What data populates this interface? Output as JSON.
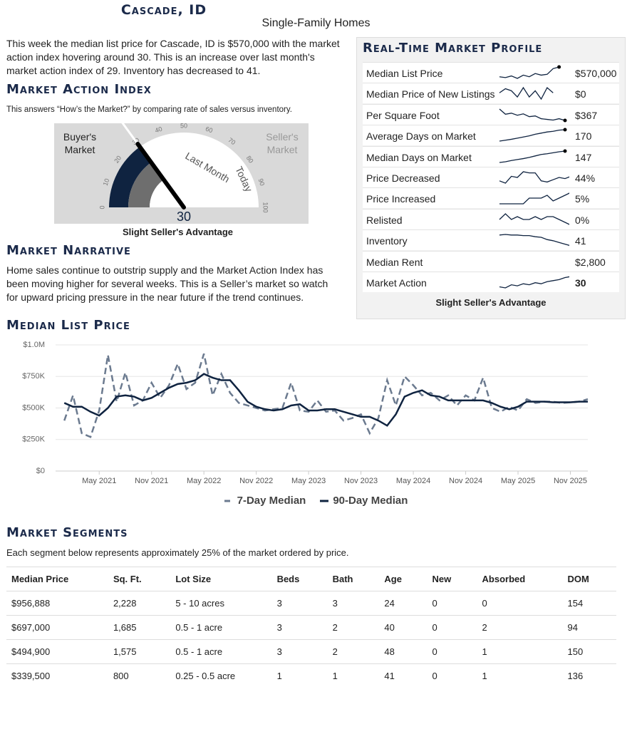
{
  "header": {
    "title": "Cascade, ID",
    "subtitle": "Single-Family Homes",
    "intro": "This week the median list price for Cascade, ID is $570,000 with the market action index hovering around 30. This is an increase over last month's market action index of 29. Inventory has decreased to 41."
  },
  "mai": {
    "title": "Market Action Index",
    "description": "This answers “How’s the Market?” by comparing rate of sales versus inventory.",
    "buyer_label": "Buyer's Market",
    "seller_label": "Seller's Market",
    "ticks": [
      0,
      10,
      20,
      30,
      40,
      50,
      60,
      70,
      80,
      90,
      100
    ],
    "value": 30,
    "last_month": 29,
    "last_month_label": "Last Month",
    "today_label": "Today",
    "caption": "Slight Seller's Advantage"
  },
  "narrative": {
    "title": "Market Narrative",
    "text": "Home sales continue to outstrip supply and the Market Action Index has been moving higher for several weeks. This is a Seller’s market so watch for upward pricing pressure in the near future if the trend continues."
  },
  "profile": {
    "title": "Real-Time Market Profile",
    "footer": "Slight Seller's Advantage",
    "rows": [
      {
        "label": "Median List Price",
        "value": "$570,000",
        "dot": true,
        "spark": [
          540000,
          535000,
          545000,
          530000,
          550000,
          540000,
          560000,
          550000,
          555000,
          590000,
          600000
        ]
      },
      {
        "label": "Median Price of New Listings",
        "value": "$0",
        "dot": false,
        "spark": [
          600000,
          640000,
          620000,
          560000,
          650000,
          560000,
          620000,
          540000,
          650000,
          600000
        ]
      },
      {
        "label": "Per Square Foot",
        "value": "$367",
        "dot": true,
        "spark": [
          400,
          385,
          388,
          382,
          386,
          378,
          380,
          372,
          370,
          368,
          372,
          367
        ]
      },
      {
        "label": "Average Days on Market",
        "value": "170",
        "dot": true,
        "spark": [
          120,
          124,
          128,
          133,
          138,
          143,
          150,
          155,
          160,
          163,
          168,
          170
        ]
      },
      {
        "label": "Median Days on Market",
        "value": "147",
        "dot": true,
        "spark": [
          100,
          103,
          108,
          112,
          116,
          121,
          127,
          133,
          136,
          140,
          144,
          147
        ]
      },
      {
        "label": "Price Decreased",
        "value": "44%",
        "dot": true,
        "spark": [
          40,
          38,
          44,
          43,
          48,
          47,
          47,
          40,
          39,
          41,
          43,
          42,
          44
        ]
      },
      {
        "label": "Price Increased",
        "value": "5%",
        "dot": true,
        "spark": [
          2,
          2,
          2,
          2,
          2,
          4,
          4,
          4,
          5,
          3,
          4,
          5,
          6
        ]
      },
      {
        "label": "Relisted",
        "value": "0%",
        "dot": false,
        "spark": [
          2,
          4,
          2,
          3,
          2,
          2,
          3,
          2,
          3,
          3,
          2,
          1,
          0
        ]
      },
      {
        "label": "Inventory",
        "value": "41",
        "dot": true,
        "spark": [
          60,
          61,
          60,
          60,
          59,
          59,
          57,
          56,
          52,
          50,
          47,
          44,
          41
        ]
      },
      {
        "label": "Median Rent",
        "value": "$2,800",
        "dot": false
      },
      {
        "label": "Market Action",
        "value": "30",
        "dot": true,
        "bold": true,
        "spark": [
          20,
          19,
          22,
          21,
          23,
          22,
          24,
          23,
          25,
          26,
          27,
          29,
          30
        ]
      }
    ]
  },
  "chart_data": {
    "type": "line",
    "title": "Median List Price",
    "legend": "bottom",
    "grid": true,
    "x": [
      "2021-01",
      "2021-02",
      "2021-03",
      "2021-04",
      "2021-05",
      "2021-06",
      "2021-07",
      "2021-08",
      "2021-09",
      "2021-10",
      "2021-11",
      "2021-12",
      "2022-01",
      "2022-02",
      "2022-03",
      "2022-04",
      "2022-05",
      "2022-06",
      "2022-07",
      "2022-08",
      "2022-09",
      "2022-10",
      "2022-11",
      "2022-12",
      "2023-01",
      "2023-02",
      "2023-03",
      "2023-04",
      "2023-05",
      "2023-06",
      "2023-07",
      "2023-08",
      "2023-09",
      "2023-10",
      "2023-11",
      "2023-12",
      "2024-01",
      "2024-02",
      "2024-03",
      "2024-04",
      "2024-05",
      "2024-06",
      "2024-07",
      "2024-08",
      "2024-09",
      "2024-10",
      "2024-11",
      "2024-12",
      "2025-01",
      "2025-02",
      "2025-03",
      "2025-04",
      "2025-05",
      "2025-06",
      "2025-07",
      "2025-08",
      "2025-09",
      "2025-10",
      "2025-11",
      "2025-12",
      "2026-01"
    ],
    "xlim": [
      "2020-12",
      "2026-01"
    ],
    "xticks": [
      {
        "value": "2021-05",
        "label": "May 2021"
      },
      {
        "value": "2021-11",
        "label": "Nov 2021"
      },
      {
        "value": "2022-05",
        "label": "May 2022"
      },
      {
        "value": "2022-11",
        "label": "Nov 2022"
      },
      {
        "value": "2023-05",
        "label": "May 2023"
      },
      {
        "value": "2023-11",
        "label": "Nov 2023"
      },
      {
        "value": "2024-05",
        "label": "May 2024"
      },
      {
        "value": "2024-11",
        "label": "Nov 2024"
      },
      {
        "value": "2025-05",
        "label": "May 2025"
      },
      {
        "value": "2025-11",
        "label": "Nov 2025"
      }
    ],
    "ylim": [
      0,
      1000000
    ],
    "yticks": [
      {
        "value": 0,
        "label": "$0"
      },
      {
        "value": 250000,
        "label": "$250K"
      },
      {
        "value": 500000,
        "label": "$500K"
      },
      {
        "value": 750000,
        "label": "$750K"
      },
      {
        "value": 1000000,
        "label": "$1.0M"
      }
    ],
    "series": [
      {
        "name": "7-Day Median",
        "color": "#6b7a8f",
        "dash": true,
        "values": [
          400000,
          600000,
          300000,
          270000,
          480000,
          920000,
          550000,
          780000,
          520000,
          560000,
          700000,
          580000,
          680000,
          850000,
          650000,
          700000,
          930000,
          600000,
          770000,
          620000,
          540000,
          520000,
          500000,
          480000,
          490000,
          500000,
          700000,
          480000,
          470000,
          560000,
          470000,
          480000,
          400000,
          420000,
          450000,
          300000,
          420000,
          720000,
          520000,
          750000,
          680000,
          600000,
          620000,
          560000,
          600000,
          520000,
          600000,
          560000,
          740000,
          500000,
          470000,
          510000,
          480000,
          570000,
          540000,
          550000,
          550000,
          540000,
          545000,
          550000,
          570000
        ]
      },
      {
        "name": "90-Day Median",
        "color": "#0f2340",
        "dash": false,
        "values": [
          540000,
          510000,
          510000,
          470000,
          440000,
          500000,
          590000,
          600000,
          590000,
          560000,
          580000,
          620000,
          660000,
          690000,
          700000,
          720000,
          770000,
          740000,
          720000,
          720000,
          640000,
          550000,
          510000,
          490000,
          480000,
          490000,
          520000,
          530000,
          480000,
          480000,
          490000,
          490000,
          470000,
          450000,
          430000,
          430000,
          400000,
          360000,
          450000,
          590000,
          620000,
          640000,
          600000,
          590000,
          560000,
          560000,
          560000,
          560000,
          560000,
          540000,
          510000,
          490000,
          510000,
          550000,
          550000,
          550000,
          545000,
          545000,
          545000,
          550000,
          550000
        ]
      }
    ]
  },
  "segments": {
    "title": "Market Segments",
    "description": "Each segment below represents approximately 25% of the market ordered by price.",
    "columns": [
      "Median Price",
      "Sq. Ft.",
      "Lot Size",
      "Beds",
      "Bath",
      "Age",
      "New",
      "Absorbed",
      "DOM"
    ],
    "rows": [
      [
        "$956,888",
        "2,228",
        "5 - 10 acres",
        "3",
        "3",
        "24",
        "0",
        "0",
        "154"
      ],
      [
        "$697,000",
        "1,685",
        "0.5 - 1 acre",
        "3",
        "2",
        "40",
        "0",
        "2",
        "94"
      ],
      [
        "$494,900",
        "1,575",
        "0.5 - 1 acre",
        "3",
        "2",
        "48",
        "0",
        "1",
        "150"
      ],
      [
        "$339,500",
        "800",
        "0.25 - 0.5 acre",
        "1",
        "1",
        "41",
        "0",
        "1",
        "136"
      ]
    ]
  }
}
